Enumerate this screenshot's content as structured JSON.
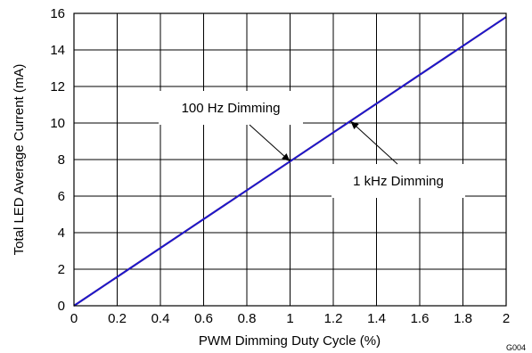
{
  "chart_data": {
    "type": "line",
    "title": "",
    "xlabel": "PWM Dimming Duty Cycle (%)",
    "ylabel": "Total LED  Average Current (mA)",
    "xlim": [
      0,
      2
    ],
    "ylim": [
      0,
      16
    ],
    "xticks": [
      "0",
      "0.2",
      "0.4",
      "0.6",
      "0.8",
      "1",
      "1.2",
      "1.4",
      "1.6",
      "1.8",
      "2"
    ],
    "yticks": [
      "0",
      "2",
      "4",
      "6",
      "8",
      "10",
      "12",
      "14",
      "16"
    ],
    "grid": true,
    "series": [
      {
        "color": "#cc0000",
        "x": [
          0,
          2
        ],
        "y": [
          0,
          15.8
        ]
      },
      {
        "color": "#1a1acc",
        "x": [
          0,
          2
        ],
        "y": [
          0,
          15.8
        ]
      }
    ],
    "annotations": [
      {
        "text": "100 Hz Dimming",
        "x": 1.0,
        "y": 7.9
      },
      {
        "text": "1 kHz Dimming",
        "x": 1.28,
        "y": 10.1
      }
    ],
    "figure_code": "G004"
  }
}
